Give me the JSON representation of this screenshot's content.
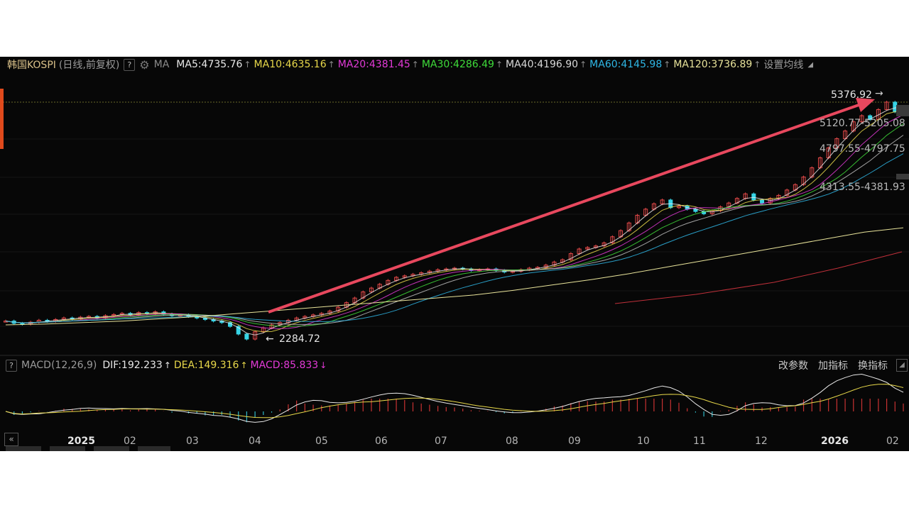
{
  "header": {
    "instrument": "韩国KOSPI",
    "mode": "(日线,前复权)",
    "help": "?",
    "ma_label": "MA",
    "settings_link": "设置均线",
    "mas": [
      {
        "text": "MA5:4735.76",
        "arrow": "↑",
        "color": "#e8e8e8"
      },
      {
        "text": "MA10:4635.16",
        "arrow": "↑",
        "color": "#e8d84a"
      },
      {
        "text": "MA20:4381.45",
        "arrow": "↑",
        "color": "#e43ad8"
      },
      {
        "text": "MA30:4286.49",
        "arrow": "↑",
        "color": "#3fdc3a"
      },
      {
        "text": "MA40:4196.90",
        "arrow": "↑",
        "color": "#d8d8d8"
      },
      {
        "text": "MA60:4145.98",
        "arrow": "↑",
        "color": "#2fb7e6"
      },
      {
        "text": "MA120:3736.89",
        "arrow": "↑",
        "color": "#e8e39a"
      }
    ]
  },
  "macd_header": {
    "help": "?",
    "title": "MACD(12,26,9)",
    "dif": {
      "text": "DIF:192.233",
      "arrow": "↑",
      "color": "#e8e8e8"
    },
    "dea": {
      "text": "DEA:149.316",
      "arrow": "↑",
      "color": "#e8d84a"
    },
    "macd": {
      "text": "MACD:85.833",
      "arrow": "↓",
      "color": "#e43ad8"
    },
    "tools": [
      "改参数",
      "加指标",
      "换指标"
    ]
  },
  "chart_data": {
    "type": "candlestick",
    "x_ticks": [
      {
        "label": "2025",
        "year": true
      },
      {
        "label": "02"
      },
      {
        "label": "03"
      },
      {
        "label": "04"
      },
      {
        "label": "05"
      },
      {
        "label": "06"
      },
      {
        "label": "07"
      },
      {
        "label": "08"
      },
      {
        "label": "09"
      },
      {
        "label": "10"
      },
      {
        "label": "11"
      },
      {
        "label": "12"
      },
      {
        "label": "2026",
        "year": true
      },
      {
        "label": "02"
      }
    ],
    "annotations": {
      "high": "5376.92",
      "low": "2284.72",
      "bands": [
        "5120.77-5205.08",
        "4797.55-4797.75",
        "4313.55-4381.93"
      ]
    },
    "close_series": [
      2520,
      2490,
      2480,
      2505,
      2530,
      2515,
      2540,
      2560,
      2545,
      2570,
      2580,
      2560,
      2590,
      2605,
      2620,
      2600,
      2630,
      2615,
      2640,
      2610,
      2590,
      2600,
      2580,
      2560,
      2540,
      2520,
      2500,
      2450,
      2350,
      2284.72,
      2380,
      2430,
      2470,
      2500,
      2530,
      2560,
      2580,
      2600,
      2620,
      2650,
      2700,
      2760,
      2820,
      2900,
      2950,
      3000,
      3050,
      3090,
      3110,
      3130,
      3150,
      3170,
      3190,
      3200,
      3210,
      3200,
      3180,
      3190,
      3200,
      3180,
      3160,
      3170,
      3190,
      3210,
      3220,
      3250,
      3290,
      3320,
      3400,
      3460,
      3480,
      3500,
      3540,
      3620,
      3700,
      3800,
      3900,
      3980,
      4050,
      4100,
      4000,
      4020,
      3980,
      3950,
      3920,
      3960,
      4010,
      4060,
      4120,
      4180,
      4100,
      4060,
      4120,
      4160,
      4230,
      4300,
      4400,
      4520,
      4650,
      4780,
      4900,
      5000,
      5120,
      5200,
      5150,
      5280,
      5376.92,
      5250,
      5320
    ],
    "ma120_series": [
      2470,
      2480,
      2500,
      2520,
      2550,
      2580,
      2620,
      2660,
      2700,
      2740,
      2780,
      2820,
      2860,
      2920,
      2990,
      3060,
      3140,
      3230,
      3320,
      3410,
      3500,
      3590,
      3680,
      3736.89
    ]
  }
}
